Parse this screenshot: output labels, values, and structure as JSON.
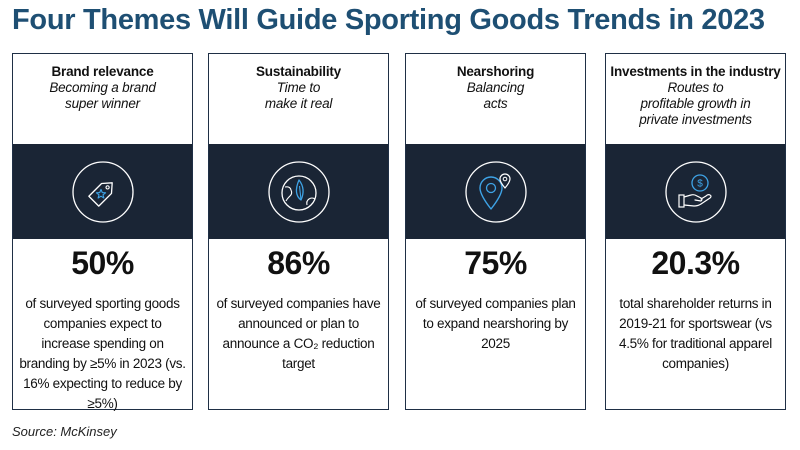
{
  "title": "Four Themes Will Guide Sporting Goods Trends in 2023",
  "cards": [
    {
      "name": "Brand relevance",
      "subtitle": "Becoming a brand\nsuper winner",
      "icon": "price-tag-star-icon",
      "stat": "50%",
      "description": "of surveyed sporting goods companies expect to increase spending on branding by ≥5% in 2023 (vs. 16% expecting to reduce by ≥5%)"
    },
    {
      "name": "Sustainability",
      "subtitle": "Time to\nmake it real",
      "icon": "globe-leaf-icon",
      "stat": "86%",
      "description": "of surveyed companies have announced or plan to announce a CO₂ reduction target"
    },
    {
      "name": "Nearshoring",
      "subtitle": "Balancing\nacts",
      "icon": "location-pin-icon",
      "stat": "75%",
      "description": "of surveyed companies plan to expand nearshoring by 2025"
    },
    {
      "name": "Investments in the industry",
      "subtitle": "Routes to\nprofitable growth in\nprivate investments",
      "icon": "hand-coin-icon",
      "stat": "20.3%",
      "description": "total shareholder returns in 2019-21 for sportswear (vs 4.5% for traditional apparel companies)"
    }
  ],
  "source": "Source: McKinsey",
  "colors": {
    "title": "#1e4f73",
    "band": "#1a2535",
    "icon_stroke": "#ffffff",
    "icon_accent": "#3ea3e6"
  }
}
